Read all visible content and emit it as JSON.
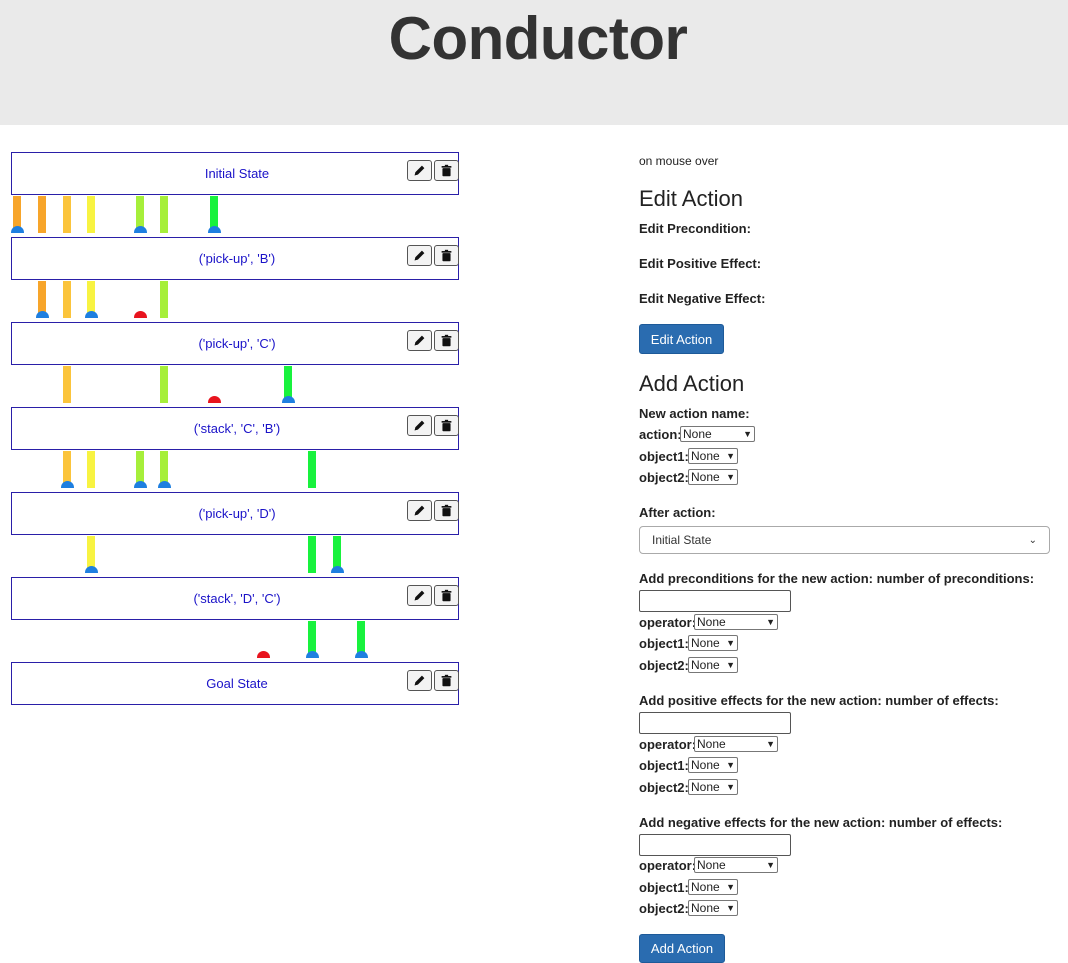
{
  "app_title": "Conductor",
  "plan": {
    "actions": [
      {
        "label": "Initial State"
      },
      {
        "label": "('pick-up', 'B')"
      },
      {
        "label": "('pick-up', 'C')"
      },
      {
        "label": "('stack', 'C', 'B')"
      },
      {
        "label": "('pick-up', 'D')"
      },
      {
        "label": "('stack', 'D', 'C')"
      },
      {
        "label": "Goal State"
      }
    ],
    "icons": [
      "pencil-icon",
      "trash-icon"
    ],
    "colors": {
      "box_border": "#2a1fa8",
      "label": "#1a12c8",
      "orange": "#f7a52a",
      "light_orange": "#fbc43b",
      "yellow": "#f8f341",
      "lime": "#a6ef3a",
      "green": "#18f23d",
      "dot_blue": "#1e7fe0",
      "dot_red": "#e8141e"
    }
  },
  "panel": {
    "mouse_over": "on mouse over",
    "edit": {
      "heading": "Edit Action",
      "precondition": "Edit Precondition:",
      "positive": "Edit Positive Effect:",
      "negative": "Edit Negative Effect:",
      "button": "Edit Action"
    },
    "add": {
      "heading": "Add Action",
      "new_name": "New action name:",
      "action_label": "action:",
      "action_value": "None",
      "object1_label": "object1:",
      "object1_value": "None",
      "object2_label": "object2:",
      "object2_value": "None",
      "after_label": "After action:",
      "after_value": "Initial State",
      "pre_label": "Add preconditions for the new action: number of preconditions:",
      "pos_label": "Add positive effects for the new action: number of effects:",
      "neg_label": "Add negative effects for the new action: number of effects:",
      "operator_label": "operator:",
      "operator_value": "None",
      "button": "Add Action"
    }
  }
}
